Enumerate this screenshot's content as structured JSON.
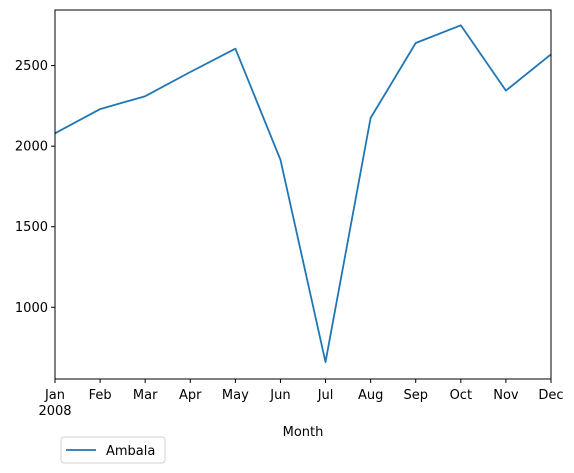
{
  "chart_data": {
    "type": "line",
    "title": "",
    "xlabel": "Month",
    "ylabel": "",
    "x_tick_labels": [
      "Jan",
      "Feb",
      "Mar",
      "Apr",
      "May",
      "Jun",
      "Jul",
      "Aug",
      "Sep",
      "Oct",
      "Nov",
      "Dec"
    ],
    "x_year_label": "2008",
    "x": [
      "2008-01",
      "2008-02",
      "2008-03",
      "2008-04",
      "2008-05",
      "2008-06",
      "2008-07",
      "2008-08",
      "2008-09",
      "2008-10",
      "2008-11",
      "2008-12"
    ],
    "y_ticks": [
      1000,
      1500,
      2000,
      2500
    ],
    "ylim": [
      555,
      2845
    ],
    "grid": false,
    "legend_position": "lower-left, below plot",
    "series": [
      {
        "name": "Ambala",
        "color": "#1f77b4",
        "values": [
          2080,
          2230,
          2310,
          2460,
          2605,
          1915,
          660,
          2175,
          2640,
          2750,
          2345,
          2570
        ]
      }
    ]
  }
}
